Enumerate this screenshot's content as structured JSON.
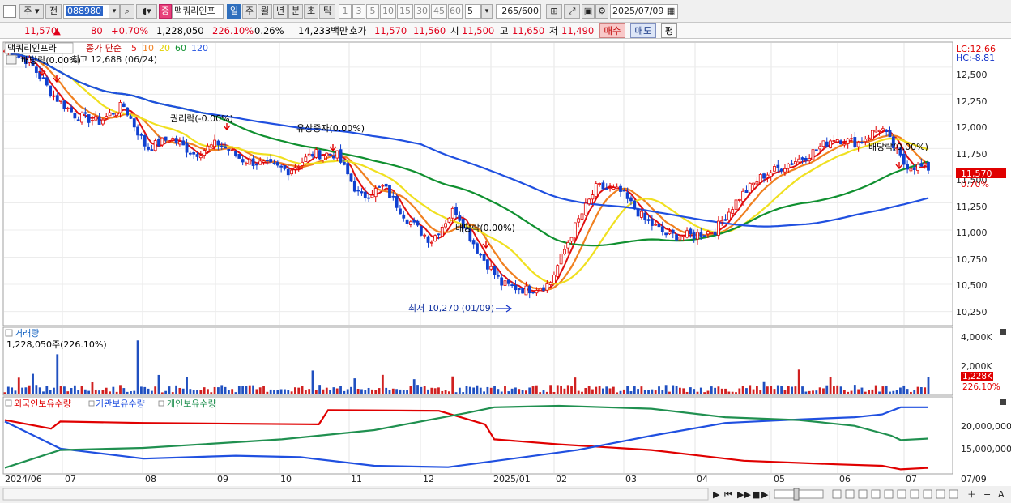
{
  "toolbar": {
    "type_label": "주",
    "prev_label": "전",
    "code": "088980",
    "stock_badge": "증",
    "stock_name": "맥쿼리인프",
    "periods": [
      "일",
      "주",
      "월",
      "년",
      "분",
      "초",
      "틱"
    ],
    "active_period": "일",
    "intervals": [
      "1",
      "3",
      "5",
      "10",
      "15",
      "30",
      "45",
      "60"
    ],
    "interval_value": "5",
    "count_value": "265",
    "count_max": "/600",
    "date": "2025/07/09"
  },
  "quote": {
    "price": "11,570",
    "change_arrow": "▲",
    "change": "80",
    "change_pct": "+0.70%",
    "volume": "1,228,050",
    "volume_ratio": "226.10%",
    "turnover": "0.26%",
    "amount": "14,233백만",
    "hoga_label": "호가",
    "ask": "11,570",
    "bid": "11,560",
    "open_label": "시",
    "open": "11,500",
    "high_label": "고",
    "high": "11,650",
    "low_label": "저",
    "low": "11,490",
    "buy_label": "매수",
    "sell_label": "매도",
    "eval_label": "평"
  },
  "price_panel": {
    "name": "맥쿼리인프라",
    "ma_label": "종가 단순",
    "ma_periods": [
      "5",
      "10",
      "20",
      "60",
      "120"
    ],
    "ma_colors": [
      "#e01010",
      "#f08020",
      "#f0e020",
      "#109030",
      "#2050e0"
    ],
    "high_annot": "최고 12,688 (06/24)",
    "dividend_topleft": "배당락(0.00%)",
    "lc": "LC:12.66",
    "hc": "HC:-8.81",
    "y_labels": [
      "12,500",
      "12,250",
      "12,000",
      "11,750",
      "11,500",
      "11,250",
      "11,000",
      "10,750",
      "10,500",
      "10,250"
    ],
    "price_tag": "11,570",
    "pct_tag": "0.70%",
    "annotations": [
      "권리락(-0.00%)",
      "유상증자(0.00%)",
      "배당락(0.00%)",
      "배당락(0.00%)"
    ],
    "low_annot": "최저 10,270 (01/09)"
  },
  "volume_panel": {
    "title": "거래량",
    "value_label": "1,228,050주(226.10%)",
    "y_labels": [
      "4,000K",
      "2,000K"
    ],
    "tag_value": "1,228K",
    "tag_pct": "226.10%"
  },
  "holdings_panel": {
    "legends": [
      "외국인보유수량",
      "기관보유수량",
      "개인보유수량"
    ],
    "legend_colors": [
      "#e00000",
      "#2050e0",
      "#209050"
    ],
    "y_labels": [
      "20,000,000",
      "15,000,000"
    ]
  },
  "x_axis": {
    "labels": [
      "2024/06",
      "07",
      "08",
      "09",
      "10",
      "11",
      "12",
      "2025/01",
      "02",
      "03",
      "04",
      "05",
      "06",
      "07"
    ],
    "right_label": "07/09"
  },
  "chart_data": {
    "type": "line",
    "price_range": [
      10150,
      12700
    ],
    "ohlc_anchor_prices": [
      12650,
      12560,
      12250,
      12050,
      12000,
      12150,
      11750,
      11850,
      11700,
      11800,
      11650,
      11600,
      11550,
      11700,
      11700,
      11300,
      11400,
      11100,
      10900,
      11200,
      10800,
      10500,
      10450,
      10500,
      11000,
      11400,
      11350,
      11100,
      10950,
      10950,
      11000,
      11300,
      11500,
      11600,
      11700,
      11850,
      11800,
      11950,
      11600,
      11570
    ],
    "volume_max": 4500
  }
}
